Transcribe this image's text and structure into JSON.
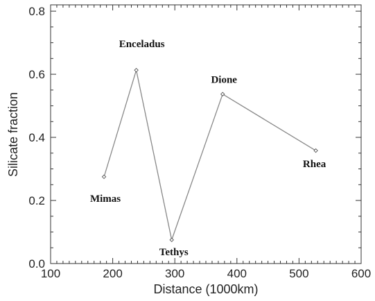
{
  "chart_data": {
    "type": "scatter",
    "title": "",
    "xlabel": "Distance (1000km)",
    "ylabel": "Silicate fraction",
    "xlim": [
      100,
      600
    ],
    "ylim": [
      0.0,
      0.82
    ],
    "x_ticks": [
      "100",
      "200",
      "300",
      "400",
      "500",
      "600"
    ],
    "y_ticks": [
      "0.0",
      "0.2",
      "0.4",
      "0.6",
      "0.8"
    ],
    "grid": false,
    "connected": true,
    "series": [
      {
        "points": [
          {
            "label": "Mimas",
            "x": 186,
            "y": 0.275
          },
          {
            "label": "Enceladus",
            "x": 238,
            "y": 0.613
          },
          {
            "label": "Tethys",
            "x": 295,
            "y": 0.075
          },
          {
            "label": "Dione",
            "x": 377,
            "y": 0.537
          },
          {
            "label": "Rhea",
            "x": 527,
            "y": 0.358
          }
        ]
      }
    ]
  }
}
